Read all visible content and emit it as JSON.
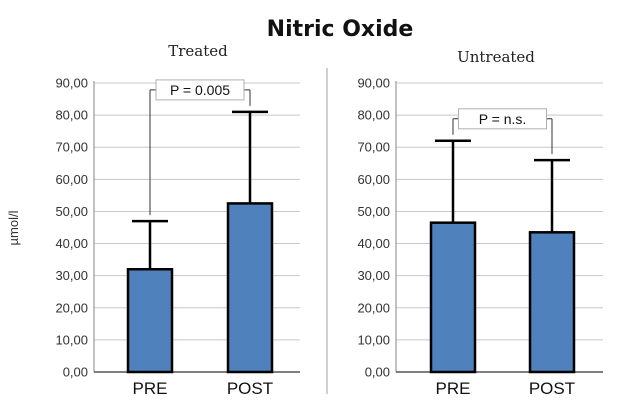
{
  "chart_data": {
    "type": "bar",
    "title": "Nitric Oxide",
    "ylabel": "µmol/l",
    "ylim": [
      0,
      90
    ],
    "yticks": [
      "0,00",
      "10,00",
      "20,00",
      "30,00",
      "40,00",
      "50,00",
      "60,00",
      "70,00",
      "80,00",
      "90,00"
    ],
    "grid": true,
    "bar_color": "#4f81bd",
    "panels": [
      {
        "title": "Treated",
        "categories": [
          "PRE",
          "POST"
        ],
        "values": [
          32,
          52.5
        ],
        "error_upper": [
          47,
          81
        ],
        "annotation": "P = 0.005"
      },
      {
        "title": "Untreated",
        "categories": [
          "PRE",
          "POST"
        ],
        "values": [
          46.5,
          43.5
        ],
        "error_upper": [
          72,
          66
        ],
        "annotation": "P = n.s."
      }
    ]
  }
}
